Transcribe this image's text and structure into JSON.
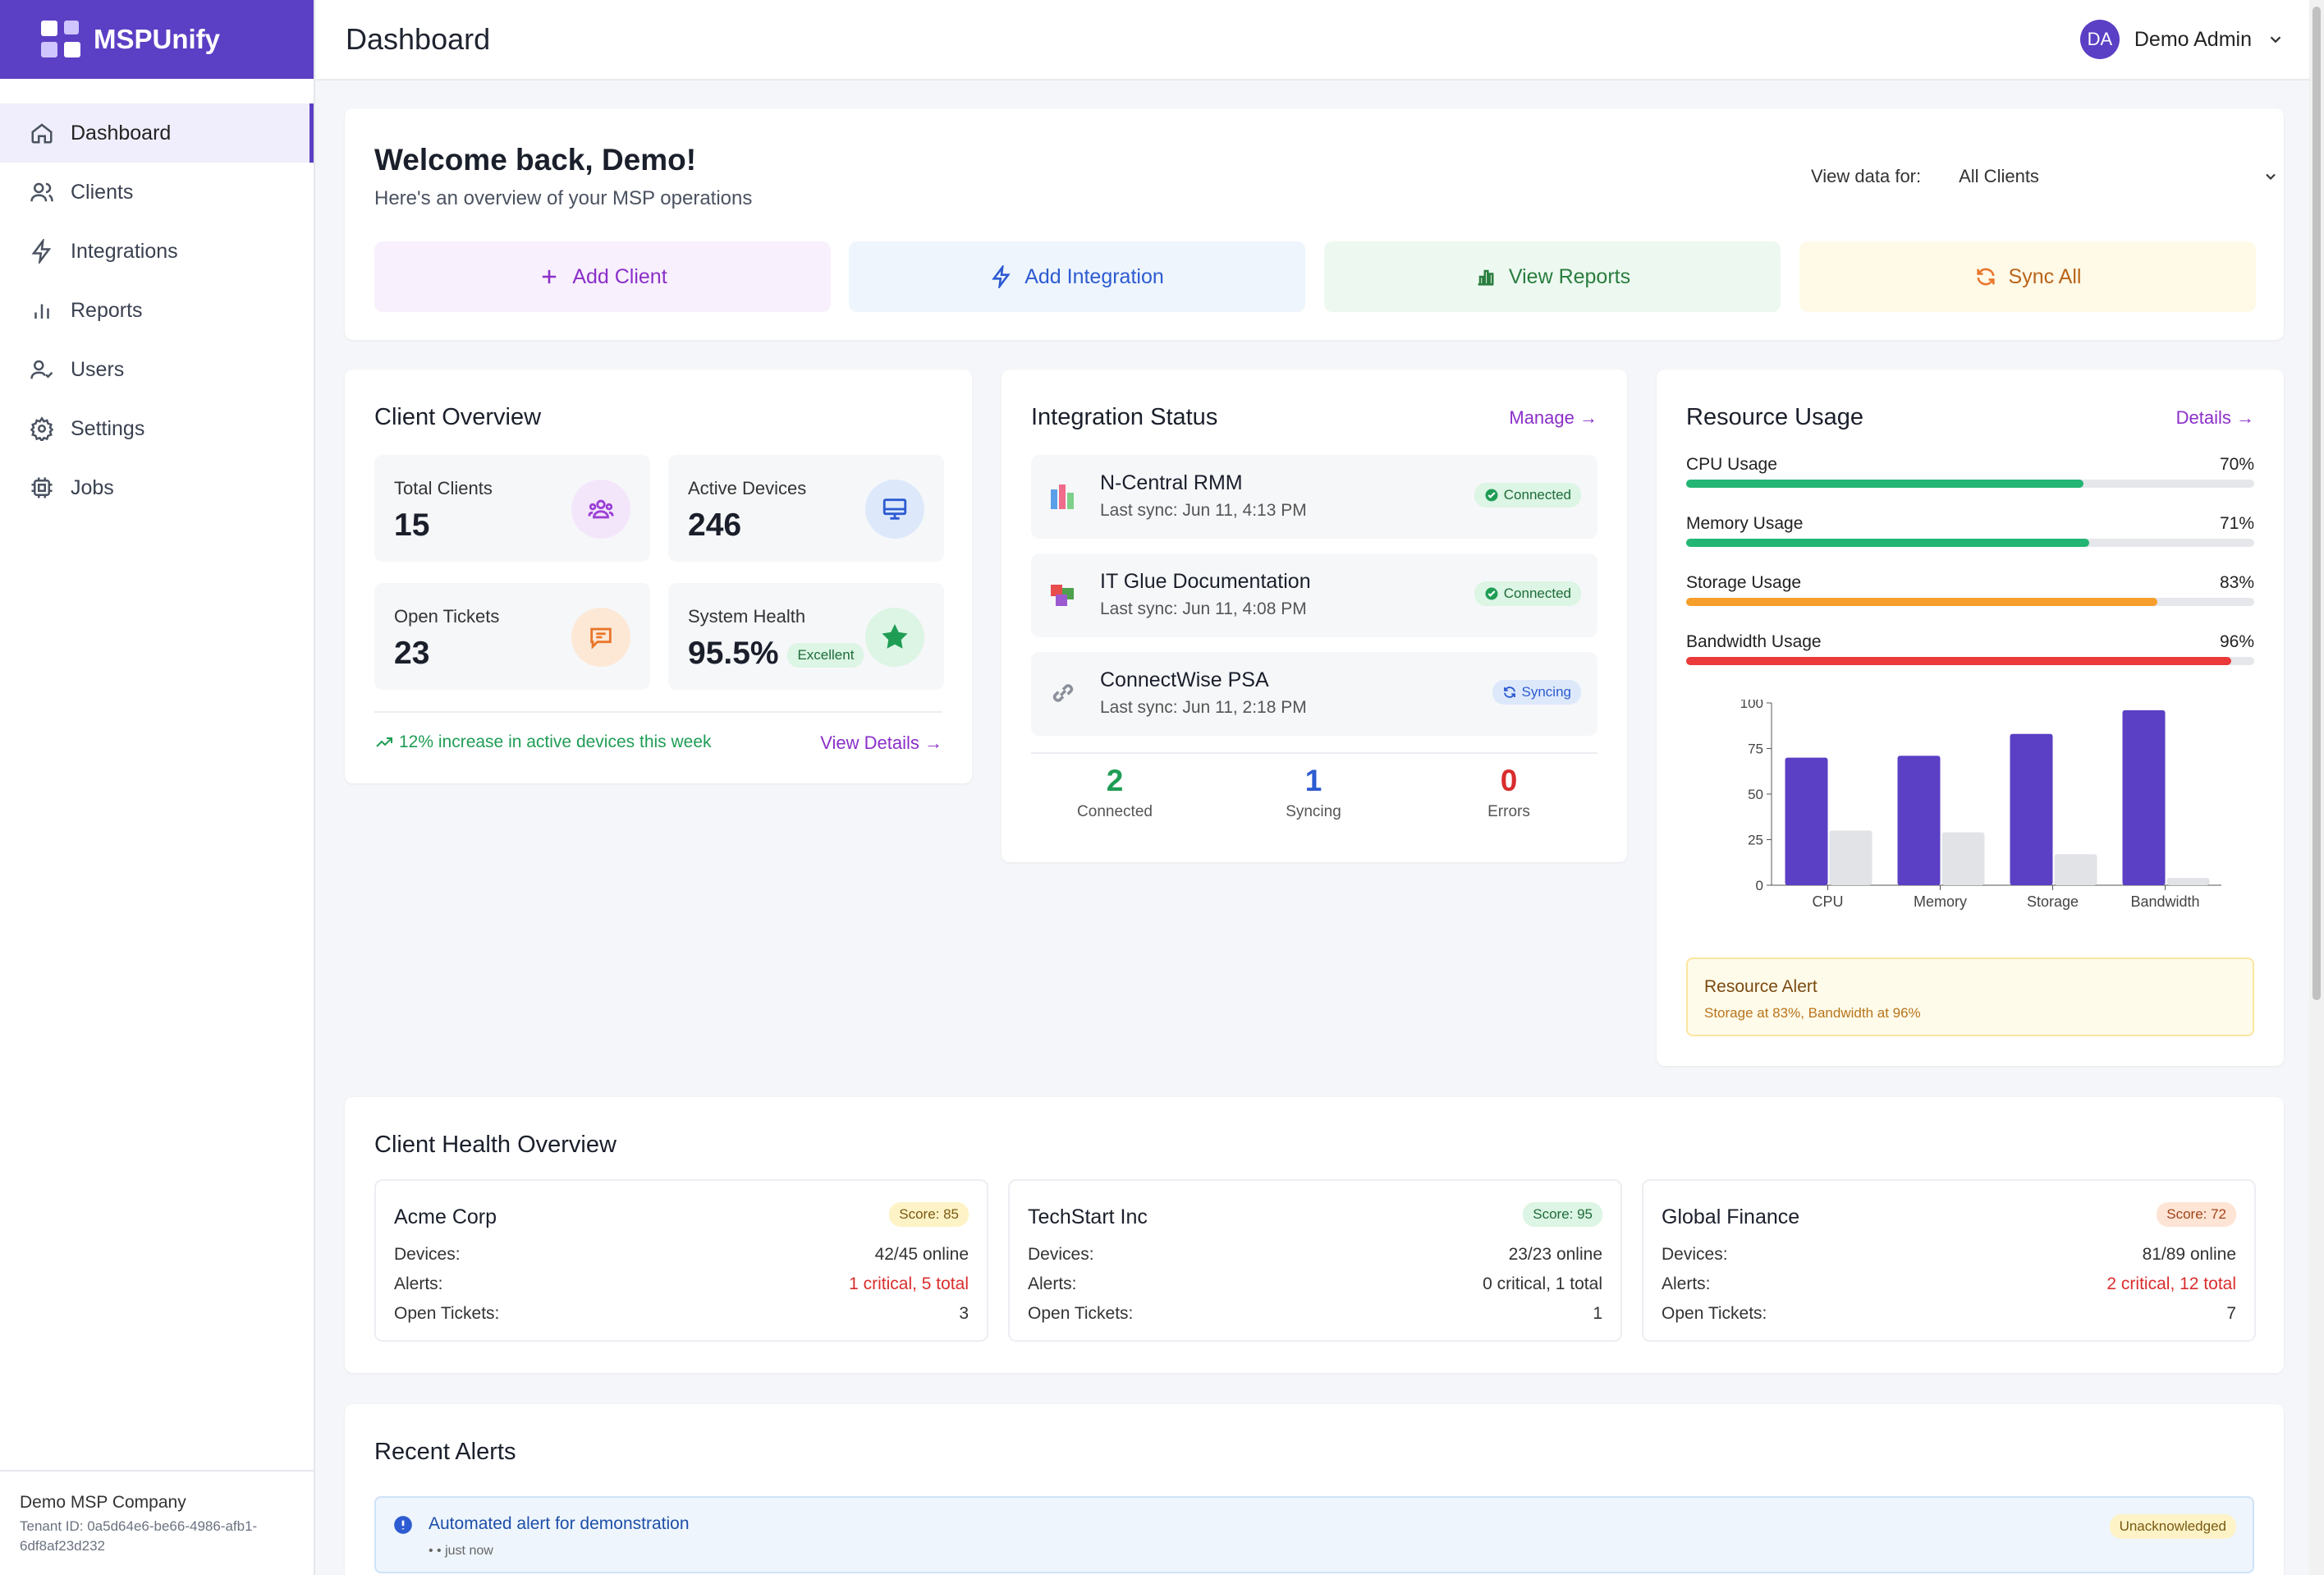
{
  "app": {
    "name": "MSPUnify"
  },
  "nav": [
    {
      "label": "Dashboard",
      "icon": "home-icon"
    },
    {
      "label": "Clients",
      "icon": "users-icon"
    },
    {
      "label": "Integrations",
      "icon": "lightning-icon"
    },
    {
      "label": "Reports",
      "icon": "bar-chart-icon"
    },
    {
      "label": "Users",
      "icon": "user-check-icon"
    },
    {
      "label": "Settings",
      "icon": "gear-icon"
    },
    {
      "label": "Jobs",
      "icon": "cpu-icon"
    }
  ],
  "tenant": {
    "company": "Demo MSP Company",
    "tenant_id": "Tenant ID: 0a5d64e6-be66-4986-afb1-6df8af23d232"
  },
  "header": {
    "title": "Dashboard",
    "user_initials": "DA",
    "user_name": "Demo Admin"
  },
  "welcome": {
    "title": "Welcome back, Demo!",
    "subtitle": "Here's an overview of your MSP operations",
    "view_label": "View data for:",
    "view_value": "All Clients",
    "actions": [
      {
        "label": "Add Client",
        "icon": "plus-icon",
        "bg": "#f8f0fc",
        "color": "#8b2fc9"
      },
      {
        "label": "Add Integration",
        "icon": "lightning-icon",
        "bg": "#eef5fd",
        "color": "#2d5bd1"
      },
      {
        "label": "View Reports",
        "icon": "bar-chart-icon",
        "bg": "#edf9f0",
        "color": "#2a7d3f"
      },
      {
        "label": "Sync All",
        "icon": "refresh-icon",
        "bg": "#fff9e8",
        "color": "#b8641a"
      }
    ]
  },
  "client_overview": {
    "title": "Client Overview",
    "stats": [
      {
        "label": "Total Clients",
        "value": "15",
        "icon": "users-group-icon"
      },
      {
        "label": "Active Devices",
        "value": "246",
        "icon": "monitor-icon"
      },
      {
        "label": "Open Tickets",
        "value": "23",
        "icon": "chat-icon"
      },
      {
        "label": "System Health",
        "value": "95.5%",
        "badge": "Excellent",
        "icon": "star-icon"
      }
    ],
    "trend": "12% increase in active devices this week",
    "link": "View Details →"
  },
  "integration_status": {
    "title": "Integration Status",
    "link": "Manage →",
    "items": [
      {
        "name": "N-Central RMM",
        "sync": "Last sync: Jun 11, 4:13 PM",
        "status": "Connected"
      },
      {
        "name": "IT Glue Documentation",
        "sync": "Last sync: Jun 11, 4:08 PM",
        "status": "Connected"
      },
      {
        "name": "ConnectWise PSA",
        "sync": "Last sync: Jun 11, 2:18 PM",
        "status": "Syncing"
      }
    ],
    "summary": [
      {
        "value": "2",
        "label": "Connected",
        "color": "#1f9d55"
      },
      {
        "value": "1",
        "label": "Syncing",
        "color": "#2d5bd1"
      },
      {
        "value": "0",
        "label": "Errors",
        "color": "#d92d2d"
      }
    ]
  },
  "resource_usage": {
    "title": "Resource Usage",
    "link": "Details →",
    "bars": [
      {
        "label": "CPU Usage",
        "value": 70,
        "pct": "70%",
        "color": "#22b573"
      },
      {
        "label": "Memory Usage",
        "value": 71,
        "pct": "71%",
        "color": "#22b573"
      },
      {
        "label": "Storage Usage",
        "value": 83,
        "pct": "83%",
        "color": "#f59e2b"
      },
      {
        "label": "Bandwidth Usage",
        "value": 96,
        "pct": "96%",
        "color": "#ea3a3a"
      }
    ],
    "alert_title": "Resource Alert",
    "alert_text": "Storage at 83%, Bandwidth at 96%"
  },
  "chart_data": {
    "type": "bar",
    "categories": [
      "CPU",
      "Memory",
      "Storage",
      "Bandwidth"
    ],
    "series": [
      {
        "values": [
          70,
          71,
          83,
          96
        ],
        "color": "#5b3fc4"
      },
      {
        "values": [
          30,
          29,
          17,
          4
        ],
        "color": "#e2e3e7"
      }
    ],
    "yticks": [
      "0",
      "25",
      "50",
      "75",
      "100"
    ],
    "ylim": [
      0,
      100
    ]
  },
  "client_health": {
    "title": "Client Health Overview",
    "clients": [
      {
        "name": "Acme Corp",
        "score": "Score: 85",
        "score_bg": "#fdf3c7",
        "score_color": "#7a5a10",
        "devices": "42/45 online",
        "alerts": "1 critical, 5 total",
        "alerts_color": "#d92d2d",
        "tickets": "3"
      },
      {
        "name": "TechStart Inc",
        "score": "Score: 95",
        "score_bg": "#dcf5e4",
        "score_color": "#1e6b39",
        "devices": "23/23 online",
        "alerts": "0 critical, 1 total",
        "alerts_color": "#333333",
        "tickets": "1"
      },
      {
        "name": "Global Finance",
        "score": "Score: 72",
        "score_bg": "#fde4d4",
        "score_color": "#a3441a",
        "devices": "81/89 online",
        "alerts": "2 critical, 12 total",
        "alerts_color": "#d92d2d",
        "tickets": "7"
      }
    ],
    "labels": {
      "devices": "Devices:",
      "alerts": "Alerts:",
      "tickets": "Open Tickets:"
    }
  },
  "recent_alerts": {
    "title": "Recent Alerts",
    "items": [
      {
        "title": "Automated alert for demonstration",
        "meta": "• • just now",
        "status": "Unacknowledged"
      }
    ]
  }
}
